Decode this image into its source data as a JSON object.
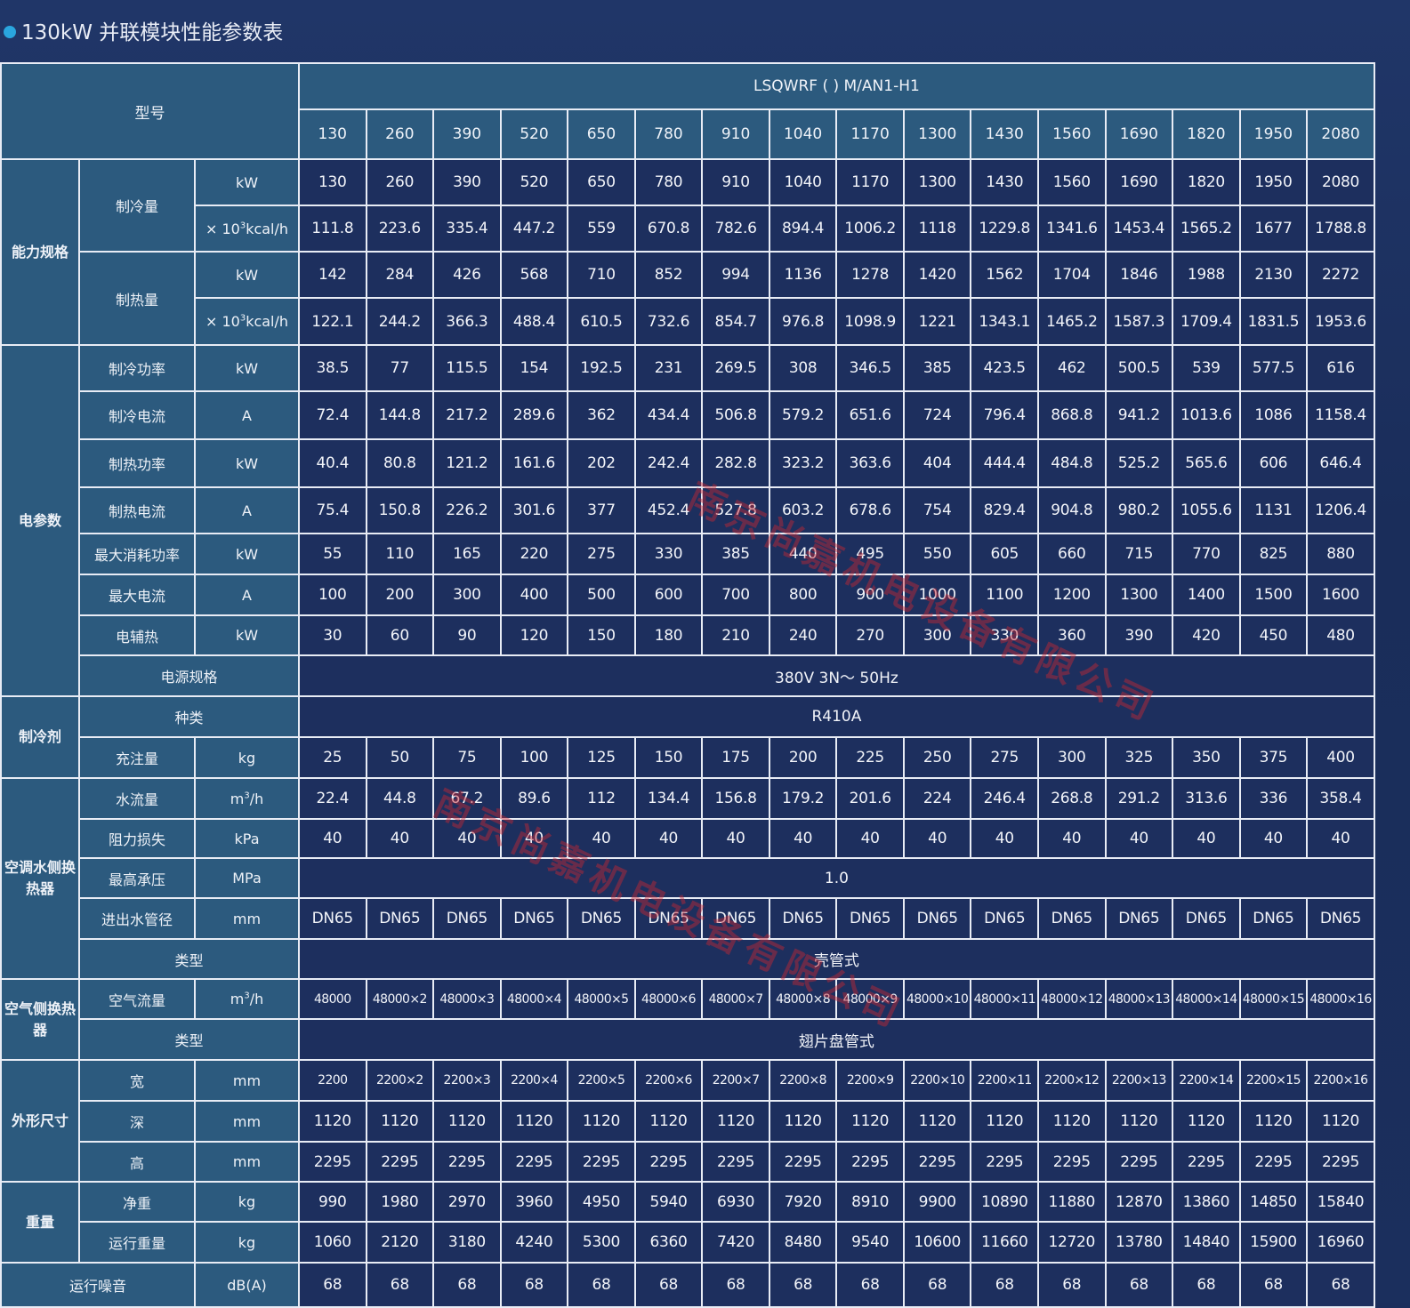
{
  "title": "130kW 并联模块性能参数表",
  "model_label": "型号",
  "model_series": "LSQWRF (  ) M/AN1-H1",
  "models": [
    "130",
    "260",
    "390",
    "520",
    "650",
    "780",
    "910",
    "1040",
    "1170",
    "1300",
    "1430",
    "1560",
    "1690",
    "1820",
    "1950",
    "2080"
  ],
  "groups": {
    "capacity": "能力规格",
    "electrical": "电参数",
    "refrigerant": "制冷剂",
    "water_hx": "空调水侧换热器",
    "air_hx": "空气侧换热器",
    "dimensions": "外形尺寸",
    "weight": "重量"
  },
  "labels": {
    "cooling_capacity": "制冷量",
    "heating_capacity": "制热量",
    "cooling_power": "制冷功率",
    "cooling_current": "制冷电流",
    "heating_power": "制热功率",
    "heating_current": "制热电流",
    "max_power": "最大消耗功率",
    "max_current": "最大电流",
    "aux_heat": "电辅热",
    "power_supply": "电源规格",
    "ref_type": "种类",
    "charge": "充注量",
    "water_flow": "水流量",
    "pressure_loss": "阻力损失",
    "max_pressure": "最高承压",
    "pipe_dia": "进出水管径",
    "water_hx_type": "类型",
    "air_flow": "空气流量",
    "air_hx_type": "类型",
    "width": "宽",
    "depth": "深",
    "height": "高",
    "net_weight": "净重",
    "operating_weight": "运行重量",
    "noise": "运行噪音"
  },
  "units": {
    "kw": "kW",
    "kcal_prefix": "× 10",
    "kcal_sup": "3",
    "kcal_suffix": "kcal/h",
    "a": "A",
    "kg": "kg",
    "m3h_prefix": "m",
    "m3h_sup": "3",
    "m3h_suffix": "/h",
    "kpa": "kPa",
    "mpa": "MPa",
    "mm": "mm",
    "dba": "dB(A)"
  },
  "rows": {
    "cooling_kw": [
      "130",
      "260",
      "390",
      "520",
      "650",
      "780",
      "910",
      "1040",
      "1170",
      "1300",
      "1430",
      "1560",
      "1690",
      "1820",
      "1950",
      "2080"
    ],
    "cooling_kcal": [
      "111.8",
      "223.6",
      "335.4",
      "447.2",
      "559",
      "670.8",
      "782.6",
      "894.4",
      "1006.2",
      "1118",
      "1229.8",
      "1341.6",
      "1453.4",
      "1565.2",
      "1677",
      "1788.8"
    ],
    "heating_kw": [
      "142",
      "284",
      "426",
      "568",
      "710",
      "852",
      "994",
      "1136",
      "1278",
      "1420",
      "1562",
      "1704",
      "1846",
      "1988",
      "2130",
      "2272"
    ],
    "heating_kcal": [
      "122.1",
      "244.2",
      "366.3",
      "488.4",
      "610.5",
      "732.6",
      "854.7",
      "976.8",
      "1098.9",
      "1221",
      "1343.1",
      "1465.2",
      "1587.3",
      "1709.4",
      "1831.5",
      "1953.6"
    ],
    "cooling_power": [
      "38.5",
      "77",
      "115.5",
      "154",
      "192.5",
      "231",
      "269.5",
      "308",
      "346.5",
      "385",
      "423.5",
      "462",
      "500.5",
      "539",
      "577.5",
      "616"
    ],
    "cooling_current": [
      "72.4",
      "144.8",
      "217.2",
      "289.6",
      "362",
      "434.4",
      "506.8",
      "579.2",
      "651.6",
      "724",
      "796.4",
      "868.8",
      "941.2",
      "1013.6",
      "1086",
      "1158.4"
    ],
    "heating_power": [
      "40.4",
      "80.8",
      "121.2",
      "161.6",
      "202",
      "242.4",
      "282.8",
      "323.2",
      "363.6",
      "404",
      "444.4",
      "484.8",
      "525.2",
      "565.6",
      "606",
      "646.4"
    ],
    "heating_current": [
      "75.4",
      "150.8",
      "226.2",
      "301.6",
      "377",
      "452.4",
      "527.8",
      "603.2",
      "678.6",
      "754",
      "829.4",
      "904.8",
      "980.2",
      "1055.6",
      "1131",
      "1206.4"
    ],
    "max_power": [
      "55",
      "110",
      "165",
      "220",
      "275",
      "330",
      "385",
      "440",
      "495",
      "550",
      "605",
      "660",
      "715",
      "770",
      "825",
      "880"
    ],
    "max_current": [
      "100",
      "200",
      "300",
      "400",
      "500",
      "600",
      "700",
      "800",
      "900",
      "1000",
      "1100",
      "1200",
      "1300",
      "1400",
      "1500",
      "1600"
    ],
    "aux_heat": [
      "30",
      "60",
      "90",
      "120",
      "150",
      "180",
      "210",
      "240",
      "270",
      "300",
      "330",
      "360",
      "390",
      "420",
      "450",
      "480"
    ],
    "charge": [
      "25",
      "50",
      "75",
      "100",
      "125",
      "150",
      "175",
      "200",
      "225",
      "250",
      "275",
      "300",
      "325",
      "350",
      "375",
      "400"
    ],
    "water_flow": [
      "22.4",
      "44.8",
      "67.2",
      "89.6",
      "112",
      "134.4",
      "156.8",
      "179.2",
      "201.6",
      "224",
      "246.4",
      "268.8",
      "291.2",
      "313.6",
      "336",
      "358.4"
    ],
    "pressure_loss": [
      "40",
      "40",
      "40",
      "40",
      "40",
      "40",
      "40",
      "40",
      "40",
      "40",
      "40",
      "40",
      "40",
      "40",
      "40",
      "40"
    ],
    "pipe_dia": [
      "DN65",
      "DN65",
      "DN65",
      "DN65",
      "DN65",
      "DN65",
      "DN65",
      "DN65",
      "DN65",
      "DN65",
      "DN65",
      "DN65",
      "DN65",
      "DN65",
      "DN65",
      "DN65"
    ],
    "air_flow": [
      "48000",
      "48000×2",
      "48000×3",
      "48000×4",
      "48000×5",
      "48000×6",
      "48000×7",
      "48000×8",
      "48000×9",
      "48000×10",
      "48000×11",
      "48000×12",
      "48000×13",
      "48000×14",
      "48000×15",
      "48000×16"
    ],
    "width": [
      "2200",
      "2200×2",
      "2200×3",
      "2200×4",
      "2200×5",
      "2200×6",
      "2200×7",
      "2200×8",
      "2200×9",
      "2200×10",
      "2200×11",
      "2200×12",
      "2200×13",
      "2200×14",
      "2200×15",
      "2200×16"
    ],
    "depth": [
      "1120",
      "1120",
      "1120",
      "1120",
      "1120",
      "1120",
      "1120",
      "1120",
      "1120",
      "1120",
      "1120",
      "1120",
      "1120",
      "1120",
      "1120",
      "1120"
    ],
    "height": [
      "2295",
      "2295",
      "2295",
      "2295",
      "2295",
      "2295",
      "2295",
      "2295",
      "2295",
      "2295",
      "2295",
      "2295",
      "2295",
      "2295",
      "2295",
      "2295"
    ],
    "net_weight": [
      "990",
      "1980",
      "2970",
      "3960",
      "4950",
      "5940",
      "6930",
      "7920",
      "8910",
      "9900",
      "10890",
      "11880",
      "12870",
      "13860",
      "14850",
      "15840"
    ],
    "operating_weight": [
      "1060",
      "2120",
      "3180",
      "4240",
      "5300",
      "6360",
      "7420",
      "8480",
      "9540",
      "10600",
      "11660",
      "12720",
      "13780",
      "14840",
      "15900",
      "16960"
    ],
    "noise": [
      "68",
      "68",
      "68",
      "68",
      "68",
      "68",
      "68",
      "68",
      "68",
      "68",
      "68",
      "68",
      "68",
      "68",
      "68",
      "68"
    ]
  },
  "spans": {
    "power_supply": "380V  3N～ 50Hz",
    "ref_type": "R410A",
    "max_pressure": "1.0",
    "water_hx_type": "壳管式",
    "air_hx_type": "翅片盘管式"
  },
  "watermark": "南京尚嘉机电设备有限公司"
}
